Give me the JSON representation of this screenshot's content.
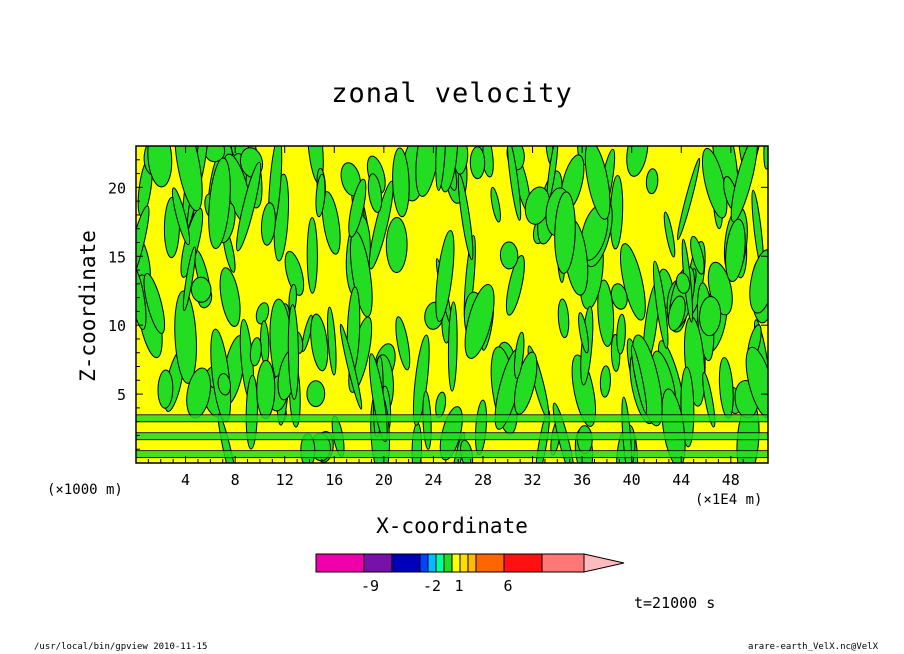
{
  "chart_data": {
    "type": "heatmap",
    "title": "zonal velocity",
    "xlabel": "X-coordinate",
    "ylabel": "Z-coordinate",
    "x_unit_left": "(×1000 m)",
    "x_unit_right": "(×1E4 m)",
    "xlim": [
      0,
      51
    ],
    "ylim": [
      0,
      23
    ],
    "x_ticks": [
      4,
      8,
      12,
      16,
      20,
      24,
      28,
      32,
      36,
      40,
      44,
      48
    ],
    "y_ticks": [
      5,
      10,
      15,
      20
    ],
    "field_colors": {
      "positive_small": "#ffff00",
      "negative_small": "#22dd22"
    },
    "colorbar": {
      "colors": [
        "#ee00aa",
        "#7711aa",
        "#0000bb",
        "#0044ff",
        "#00bbff",
        "#00ff99",
        "#22dd22",
        "#ffff00",
        "#ffdd00",
        "#ffbb00",
        "#ff6600",
        "#ff1111",
        "#ff7777",
        "#ffbbbb"
      ],
      "labels": [
        "-9",
        "-2",
        "1",
        "6"
      ]
    },
    "time_label": "t=21000 s"
  },
  "footer": {
    "left": "/usr/local/bin/gpview  2010-11-15",
    "right": "arare-earth_VelX.nc@VelX"
  }
}
